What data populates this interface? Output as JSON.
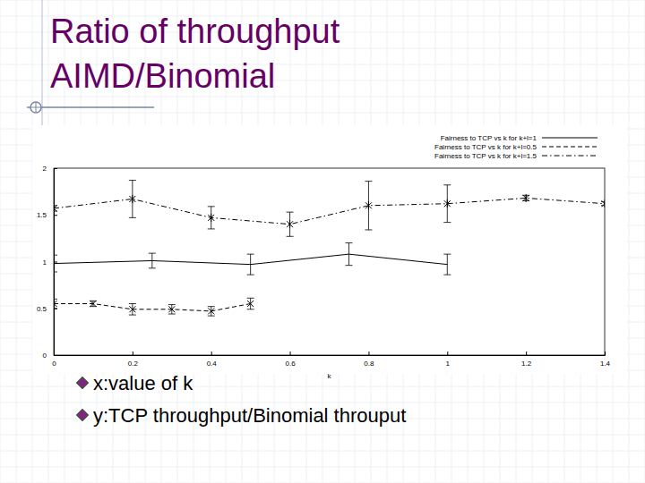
{
  "slide": {
    "title_lines": [
      "Ratio of throughput",
      "AIMD/Binomial"
    ],
    "bullets": [
      "x:value of k",
      "y:TCP throughput/Binomial throuput"
    ]
  },
  "chart_data": {
    "type": "line",
    "xlabel": "k",
    "xlim": [
      0,
      1.4
    ],
    "xticks": [
      0,
      0.2,
      0.4,
      0.6,
      0.8,
      1,
      1.2,
      1.4
    ],
    "ylim": [
      0,
      2
    ],
    "yticks": [
      0,
      0.5,
      1,
      1.5,
      2
    ],
    "legend": "upper right",
    "series": [
      {
        "name": "Fairness to TCP vs k for k+l=1",
        "color": "#000000",
        "line_style": "solid",
        "marker": "none",
        "x": [
          0,
          0.25,
          0.5,
          0.75,
          1.0
        ],
        "values": [
          0.98,
          1.01,
          0.97,
          1.08,
          0.97
        ],
        "errors": [
          0.09,
          0.08,
          0.11,
          0.12,
          0.11
        ]
      },
      {
        "name": "Fairness to TCP vs k for k+l=0.5",
        "color": "#000000",
        "line_style": "dashed",
        "marker": "x",
        "x": [
          0,
          0.1,
          0.2,
          0.3,
          0.4,
          0.5
        ],
        "values": [
          0.55,
          0.55,
          0.49,
          0.49,
          0.47,
          0.55
        ],
        "errors": [
          0.05,
          0.03,
          0.06,
          0.05,
          0.05,
          0.06
        ]
      },
      {
        "name": "Fairness to TCP vs k for k+l=1.5",
        "color": "#000000",
        "line_style": "dashdot",
        "marker": "star",
        "x": [
          0,
          0.2,
          0.4,
          0.6,
          0.8,
          1.0,
          1.2,
          1.4
        ],
        "values": [
          1.57,
          1.67,
          1.47,
          1.4,
          1.6,
          1.62,
          1.68,
          1.62
        ],
        "errors": [
          0.03,
          0.2,
          0.12,
          0.13,
          0.26,
          0.2,
          0.03,
          0.02
        ]
      }
    ]
  }
}
